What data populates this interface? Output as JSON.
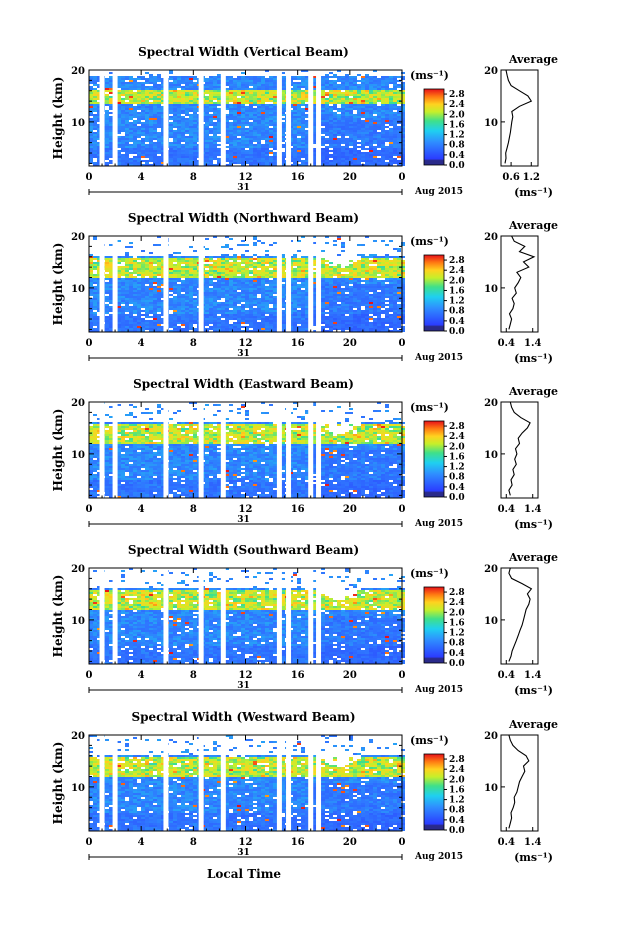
{
  "figure": {
    "x_axis_title": "Local Time",
    "date_center_label": "31",
    "date_right_label": "Aug 2015",
    "colorbar_unit_label": "(ms⁻¹)",
    "profile_unit_label": "(ms⁻¹)"
  },
  "chart_data": [
    {
      "type": "heatmap",
      "title": "Spectral Width (Vertical Beam)",
      "ylabel": "Height (km)",
      "xlabel": "Local Time",
      "x_ticks": [
        "0",
        "4",
        "8",
        "12",
        "16",
        "20",
        "0"
      ],
      "xlim": [
        0,
        24
      ],
      "y_ticks": [
        "20",
        "10"
      ],
      "ylim": [
        1.5,
        20
      ],
      "colorbar": {
        "label": "(ms⁻¹)",
        "ticks": [
          "2.8",
          "2.4",
          "2.0",
          "1.6",
          "1.2",
          "0.8",
          "0.4",
          "0.0"
        ],
        "range": [
          0,
          3.0
        ]
      },
      "data_gaps_hours": [
        1.0,
        2.0,
        5.9,
        8.6,
        10.3,
        14.6,
        15.3,
        17.0,
        17.6
      ],
      "intense_band_km": [
        13.5,
        16.5
      ],
      "profile": {
        "title": "Average",
        "x_ticks": [
          "0.6",
          "1.2"
        ],
        "xlim": [
          0.3,
          1.4
        ],
        "xlabel": "(ms⁻¹)",
        "y_ticks": [
          "20",
          "10"
        ],
        "heights": [
          2,
          3,
          4,
          5,
          6,
          7,
          8,
          9,
          10,
          11,
          12,
          13,
          14,
          15,
          16,
          17,
          18,
          19,
          20
        ],
        "values": [
          0.42,
          0.45,
          0.44,
          0.48,
          0.52,
          0.55,
          0.58,
          0.6,
          0.62,
          0.65,
          0.62,
          0.85,
          1.2,
          1.1,
          0.85,
          0.6,
          0.52,
          0.48,
          0.45
        ]
      }
    },
    {
      "type": "heatmap",
      "title": "Spectral Width (Northward Beam)",
      "ylabel": "Height (km)",
      "xlabel": "Local Time",
      "x_ticks": [
        "0",
        "4",
        "8",
        "12",
        "16",
        "20",
        "0"
      ],
      "xlim": [
        0,
        24
      ],
      "y_ticks": [
        "20",
        "10"
      ],
      "ylim": [
        1.5,
        20
      ],
      "colorbar": {
        "label": "(ms⁻¹)",
        "ticks": [
          "2.8",
          "2.4",
          "2.0",
          "1.6",
          "1.2",
          "0.8",
          "0.4",
          "0.0"
        ],
        "range": [
          0,
          3.0
        ]
      },
      "data_gaps_hours": [
        1.0,
        2.0,
        5.9,
        8.6,
        14.6,
        15.3,
        17.0,
        17.6
      ],
      "intense_band_km": [
        12,
        16
      ],
      "profile": {
        "title": "Average",
        "x_ticks": [
          "0.4",
          "1.4"
        ],
        "xlim": [
          0.2,
          1.6
        ],
        "xlabel": "(ms⁻¹)",
        "y_ticks": [
          "20",
          "10"
        ],
        "heights": [
          2,
          3,
          4,
          5,
          6,
          7,
          8,
          9,
          10,
          11,
          12,
          13,
          14,
          15,
          16,
          17,
          18,
          19,
          20
        ],
        "values": [
          0.5,
          0.55,
          0.6,
          0.52,
          0.65,
          0.7,
          0.62,
          0.78,
          0.72,
          0.85,
          0.95,
          0.8,
          1.25,
          1.05,
          1.45,
          0.9,
          1.1,
          0.7,
          0.6
        ]
      }
    },
    {
      "type": "heatmap",
      "title": "Spectral Width (Eastward Beam)",
      "ylabel": "Height (km)",
      "xlabel": "Local Time",
      "x_ticks": [
        "0",
        "4",
        "8",
        "12",
        "16",
        "20",
        "0"
      ],
      "xlim": [
        0,
        24
      ],
      "y_ticks": [
        "20",
        "10"
      ],
      "ylim": [
        1.5,
        20
      ],
      "colorbar": {
        "label": "(ms⁻¹)",
        "ticks": [
          "2.8",
          "2.4",
          "2.0",
          "1.6",
          "1.2",
          "0.8",
          "0.4",
          "0.0"
        ],
        "range": [
          0,
          3.0
        ]
      },
      "data_gaps_hours": [
        1.0,
        2.0,
        5.9,
        8.6,
        10.3,
        14.6,
        15.3,
        17.0,
        17.6
      ],
      "intense_band_km": [
        12,
        16
      ],
      "profile": {
        "title": "Average",
        "x_ticks": [
          "0.4",
          "1.4"
        ],
        "xlim": [
          0.2,
          1.6
        ],
        "xlabel": "(ms⁻¹)",
        "y_ticks": [
          "20",
          "10"
        ],
        "heights": [
          2,
          3,
          4,
          5,
          6,
          7,
          8,
          9,
          10,
          11,
          12,
          13,
          14,
          15,
          16,
          17,
          18,
          19,
          20
        ],
        "values": [
          0.55,
          0.5,
          0.62,
          0.58,
          0.7,
          0.65,
          0.78,
          0.72,
          0.8,
          0.75,
          0.9,
          0.85,
          1.0,
          1.2,
          1.3,
          0.95,
          0.7,
          0.6,
          0.55
        ]
      }
    },
    {
      "type": "heatmap",
      "title": "Spectral Width (Southward Beam)",
      "ylabel": "Height (km)",
      "xlabel": "Local Time",
      "x_ticks": [
        "0",
        "4",
        "8",
        "12",
        "16",
        "20",
        "0"
      ],
      "xlim": [
        0,
        24
      ],
      "y_ticks": [
        "20",
        "10"
      ],
      "ylim": [
        1.5,
        20
      ],
      "colorbar": {
        "label": "(ms⁻¹)",
        "ticks": [
          "2.8",
          "2.4",
          "2.0",
          "1.6",
          "1.2",
          "0.8",
          "0.4",
          "0.0"
        ],
        "range": [
          0,
          3.0
        ]
      },
      "data_gaps_hours": [
        1.0,
        2.0,
        5.9,
        8.6,
        10.3,
        14.6,
        15.3,
        17.0,
        17.6
      ],
      "intense_band_km": [
        12,
        16
      ],
      "profile": {
        "title": "Average",
        "x_ticks": [
          "0.4",
          "1.4"
        ],
        "xlim": [
          0.2,
          1.6
        ],
        "xlabel": "(ms⁻¹)",
        "y_ticks": [
          "20",
          "10"
        ],
        "heights": [
          2,
          3,
          4,
          5,
          6,
          7,
          8,
          9,
          10,
          11,
          12,
          13,
          14,
          15,
          16,
          17,
          18,
          19,
          20
        ],
        "values": [
          0.5,
          0.58,
          0.62,
          0.7,
          0.78,
          0.85,
          0.92,
          1.0,
          1.05,
          1.1,
          1.15,
          1.25,
          1.3,
          1.2,
          1.35,
          1.0,
          0.6,
          0.5,
          0.55
        ]
      }
    },
    {
      "type": "heatmap",
      "title": "Spectral Width (Westward Beam)",
      "ylabel": "Height (km)",
      "xlabel": "Local Time",
      "x_ticks": [
        "0",
        "4",
        "8",
        "12",
        "16",
        "20",
        "0"
      ],
      "xlim": [
        0,
        24
      ],
      "y_ticks": [
        "20",
        "10"
      ],
      "ylim": [
        1.5,
        20
      ],
      "colorbar": {
        "label": "(ms⁻¹)",
        "ticks": [
          "2.8",
          "2.4",
          "2.0",
          "1.6",
          "1.2",
          "0.8",
          "0.4",
          "0.0"
        ],
        "range": [
          0,
          3.0
        ]
      },
      "data_gaps_hours": [
        1.0,
        2.0,
        5.9,
        8.6,
        10.3,
        14.6,
        15.3,
        17.0,
        17.6
      ],
      "intense_band_km": [
        12,
        16
      ],
      "profile": {
        "title": "Average",
        "x_ticks": [
          "0.4",
          "1.4"
        ],
        "xlim": [
          0.2,
          1.6
        ],
        "xlabel": "(ms⁻¹)",
        "y_ticks": [
          "20",
          "10"
        ],
        "heights": [
          2,
          3,
          4,
          5,
          6,
          7,
          8,
          9,
          10,
          11,
          12,
          13,
          14,
          15,
          16,
          17,
          18,
          19,
          20
        ],
        "values": [
          0.5,
          0.55,
          0.6,
          0.58,
          0.66,
          0.72,
          0.7,
          0.8,
          0.85,
          0.9,
          1.0,
          1.1,
          1.05,
          1.25,
          1.15,
          0.85,
          0.65,
          0.55,
          0.5
        ]
      }
    }
  ]
}
